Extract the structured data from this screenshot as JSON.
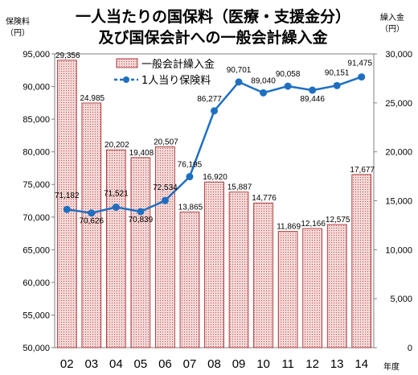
{
  "chart_data": {
    "type": "bar+line",
    "title_line1": "一人当たりの国保料（医療・支援金分）",
    "title_line2": "及び国保会計への一般会計繰入金",
    "left_axis_title_line1": "保険料",
    "left_axis_title_line2": "（円）",
    "right_axis_title_line1": "繰入金",
    "right_axis_title_line2": "（円）",
    "x_axis_title": "年度",
    "categories": [
      "02",
      "03",
      "04",
      "05",
      "06",
      "07",
      "08",
      "09",
      "10",
      "11",
      "12",
      "13",
      "14"
    ],
    "left_axis": {
      "min": 50000,
      "max": 95000,
      "step": 5000,
      "ticks": [
        "50,000",
        "55,000",
        "60,000",
        "65,000",
        "70,000",
        "75,000",
        "80,000",
        "85,000",
        "90,000",
        "95,000"
      ]
    },
    "right_axis": {
      "min": 0,
      "max": 30000,
      "step": 5000,
      "ticks": [
        "0",
        "5,000",
        "10,000",
        "15,000",
        "20,000",
        "25,000",
        "30,000"
      ]
    },
    "series": [
      {
        "name": "一般会計繰入金",
        "kind": "bar",
        "axis": "right",
        "values": [
          29356,
          24985,
          20202,
          19408,
          20507,
          13865,
          16920,
          15887,
          14776,
          11869,
          12166,
          12575,
          17677
        ],
        "labels": [
          "29,356",
          "24,985",
          "20,202",
          "19,408",
          "20,507",
          "13,865",
          "16,920",
          "15,887",
          "14,776",
          "11,869",
          "12,166",
          "12,575",
          "17,677"
        ]
      },
      {
        "name": "1人当り保険料",
        "kind": "line",
        "axis": "left",
        "values": [
          71182,
          70626,
          71521,
          70839,
          72534,
          76195,
          86277,
          90701,
          89040,
          90058,
          89446,
          90151,
          91475
        ],
        "labels": [
          "71,182",
          "70,626",
          "71,521",
          "70,839",
          "72,534",
          "76,195",
          "86,277",
          "90,701",
          "89,040",
          "90,058",
          "89,446",
          "90,151",
          "91,475"
        ]
      }
    ],
    "legend_position": "top-left-inside",
    "colors": {
      "bar_fill": "#f3d8d8",
      "bar_stroke": "#a11a1a",
      "bar_dot": "#c0504d",
      "line": "#1f6fc1"
    }
  }
}
